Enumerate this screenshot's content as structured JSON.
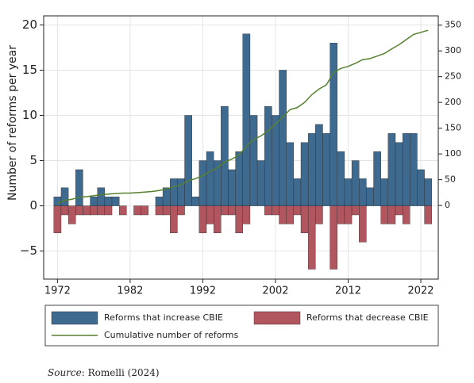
{
  "chart_data": {
    "type": "bar-line",
    "y_label": "Number of reforms per year",
    "x": [
      1972,
      1973,
      1974,
      1975,
      1976,
      1977,
      1978,
      1979,
      1980,
      1981,
      1982,
      1983,
      1984,
      1985,
      1986,
      1987,
      1988,
      1989,
      1990,
      1991,
      1992,
      1993,
      1994,
      1995,
      1996,
      1997,
      1998,
      1999,
      2000,
      2001,
      2002,
      2003,
      2004,
      2005,
      2006,
      2007,
      2008,
      2009,
      2010,
      2011,
      2012,
      2013,
      2014,
      2015,
      2016,
      2017,
      2018,
      2019,
      2020,
      2021,
      2022,
      2023
    ],
    "series": [
      {
        "name": "Reforms that increase CBIE",
        "color": "#3f6a90",
        "values": [
          1,
          2,
          0,
          4,
          0,
          1,
          2,
          1,
          1,
          0,
          0,
          0,
          0,
          0,
          1,
          2,
          3,
          3,
          10,
          1,
          5,
          6,
          5,
          11,
          4,
          6,
          19,
          10,
          5,
          11,
          10,
          15,
          7,
          3,
          7,
          8,
          9,
          8,
          18,
          6,
          3,
          5,
          3,
          2,
          6,
          3,
          8,
          7,
          8,
          8,
          4,
          3
        ]
      },
      {
        "name": "Reforms that decrease CBIE",
        "color": "#b1565e",
        "values": [
          -3,
          -1,
          -2,
          -1,
          -1,
          -1,
          -1,
          -1,
          0,
          -1,
          0,
          -1,
          -1,
          0,
          -1,
          -1,
          -3,
          -1,
          0,
          0,
          -3,
          -2,
          -3,
          -1,
          -1,
          -3,
          -2,
          0,
          0,
          -1,
          -1,
          -2,
          -2,
          -1,
          -3,
          -7,
          -2,
          0,
          -7,
          -2,
          -2,
          -1,
          -4,
          0,
          0,
          -2,
          -2,
          -1,
          -2,
          0,
          0,
          -2
        ]
      },
      {
        "name": "Cumulative number of reforms",
        "color": "#55802f",
        "axis": "y2",
        "type": "line",
        "values": [
          4,
          10,
          12,
          16,
          17,
          19,
          21,
          22,
          23,
          24,
          24,
          25,
          26,
          27,
          29,
          32,
          36,
          40,
          48,
          52,
          58,
          66,
          73,
          84,
          90,
          98,
          115,
          128,
          135,
          145,
          158,
          172,
          186,
          190,
          200,
          215,
          226,
          234,
          258,
          266,
          270,
          276,
          283,
          285,
          290,
          295,
          304,
          312,
          322,
          332,
          336,
          340
        ]
      }
    ],
    "xlim": [
      1970.1,
      2024.4
    ],
    "xticks": [
      1972,
      1982,
      1992,
      2002,
      2012,
      2022
    ],
    "ylim": [
      -8.1,
      21
    ],
    "yticks": [
      {
        "value": -5,
        "label": "−5"
      },
      0,
      5,
      10,
      15,
      20
    ],
    "y2lim": [
      -143,
      368
    ],
    "y2ticks": [
      0,
      50,
      100,
      150,
      200,
      250,
      300,
      350
    ],
    "grid": true,
    "legend": "bottom",
    "source": {
      "label": "Source",
      "text": ": Romelli (2024)"
    }
  }
}
